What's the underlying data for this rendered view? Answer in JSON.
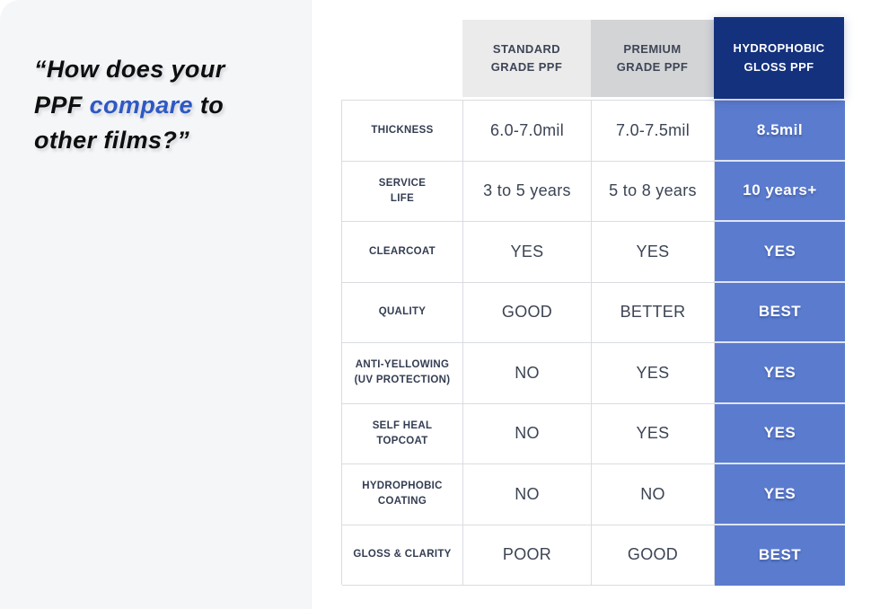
{
  "colors": {
    "page_background": "#ffffff",
    "panel_background": "#f5f6f8",
    "quote_text": "#0e0e0e",
    "quote_highlight": "#2e58c4",
    "header_standard_bg": "#ebebec",
    "header_premium_bg": "#d3d4d6",
    "header_hydrophobic_bg": "#14317e",
    "hydrophobic_cell_bg": "#5b7bce",
    "cell_border": "#d9dce1",
    "label_text": "#333d52",
    "value_text": "#3b4454"
  },
  "quote": {
    "line1": "“How does your",
    "line2_pre": "PPF ",
    "line2_highlight": "compare",
    "line2_post": " to",
    "line3": "other films?”"
  },
  "table": {
    "columns": [
      {
        "id": "standard",
        "label": "STANDARD\nGRADE PPF"
      },
      {
        "id": "premium",
        "label": "PREMIUM\nGRADE PPF"
      },
      {
        "id": "hydrophobic",
        "label": "HYDROPHOBIC\nGLOSS PPF"
      }
    ],
    "rows": [
      {
        "label": "THICKNESS",
        "standard": "6.0-7.0mil",
        "premium": "7.0-7.5mil",
        "hydrophobic": "8.5mil"
      },
      {
        "label": "SERVICE\nLIFE",
        "standard": "3 to 5 years",
        "premium": "5 to 8 years",
        "hydrophobic": "10 years+"
      },
      {
        "label": "CLEARCOAT",
        "standard": "YES",
        "premium": "YES",
        "hydrophobic": "YES"
      },
      {
        "label": "QUALITY",
        "standard": "GOOD",
        "premium": "BETTER",
        "hydrophobic": "BEST"
      },
      {
        "label": "ANTI-YELLOWING\n(UV PROTECTION)",
        "standard": "NO",
        "premium": "YES",
        "hydrophobic": "YES"
      },
      {
        "label": "SELF HEAL\nTOPCOAT",
        "standard": "NO",
        "premium": "YES",
        "hydrophobic": "YES"
      },
      {
        "label": "HYDROPHOBIC\nCOATING",
        "standard": "NO",
        "premium": "NO",
        "hydrophobic": "YES"
      },
      {
        "label": "GLOSS & CLARITY",
        "standard": "POOR",
        "premium": "GOOD",
        "hydrophobic": "BEST"
      }
    ]
  }
}
